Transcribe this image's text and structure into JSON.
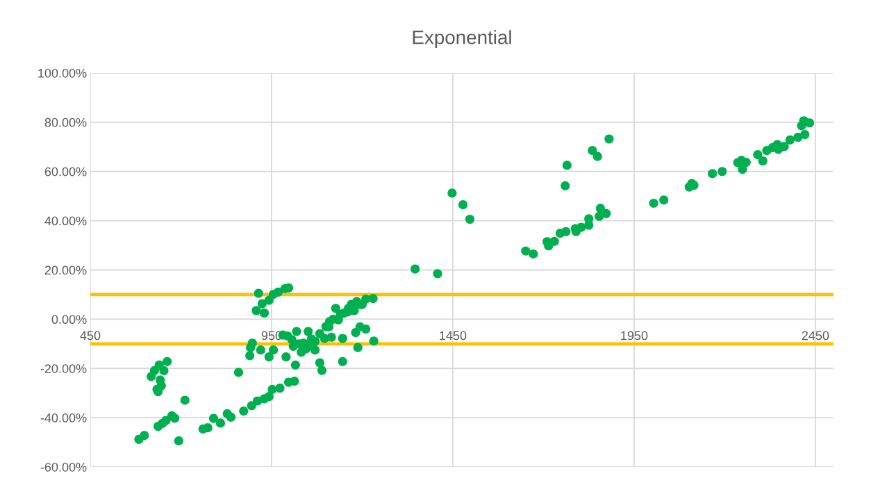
{
  "chart_data": {
    "type": "scatter",
    "title": "Exponential",
    "x": [
      584,
      599,
      637,
      649,
      659,
      675,
      683,
      694,
      711,
      618,
      627,
      640,
      662,
      653,
      643,
      646,
      637,
      634,
      761,
      774,
      790,
      809,
      828,
      838,
      873,
      895,
      911,
      930,
      943,
      952,
      973,
      997,
      1013,
      859,
      914,
      908,
      930,
      924,
      943,
      955,
      968,
      987,
      997,
      897,
      892,
      890,
      920,
      943,
      955,
      981,
      994,
      990,
      1006,
      1019,
      1016,
      1032,
      1038,
      1051,
      1057,
      1070,
      1083,
      1096,
      1108,
      1115,
      1127,
      1134,
      1146,
      1162,
      1178,
      1185,
      1210,
      1230,
      1083,
      1089,
      1146,
      1188,
      1182,
      1194,
      1210,
      1232,
      1010,
      1025,
      1045,
      1060,
      1070,
      1100,
      1110,
      1120,
      1140,
      1150,
      1160,
      1170,
      1195,
      1200,
      1346,
      1408,
      1448,
      1478,
      1497,
      1651,
      1672,
      1710,
      1714,
      1730,
      1746,
      1762,
      1788,
      1790,
      1804,
      1825,
      1825,
      1854,
      1857,
      1873,
      1760,
      1765,
      1835,
      1849,
      1881,
      2004,
      2032,
      2102,
      2109,
      2115,
      2166,
      2193,
      2236,
      2246,
      2259,
      2249,
      2291,
      2305,
      2316,
      2332,
      2345,
      2348,
      2364,
      2380,
      2402,
      2421,
      2412,
      2418,
      2434
    ],
    "series": [
      {
        "color": "#00b050",
        "values": [
          -48.8,
          -47.2,
          -43.5,
          -42.3,
          -41.1,
          -39.2,
          -40.2,
          -49.4,
          -32.9,
          -23.3,
          -20.9,
          -18.6,
          -17.2,
          -20.9,
          -24.7,
          -27.0,
          -29.4,
          -28.5,
          -44.6,
          -44.1,
          -40.3,
          -42.2,
          -38.4,
          -39.8,
          -37.3,
          -35.1,
          -33.2,
          -32.3,
          -31.4,
          -28.5,
          -28.0,
          -25.6,
          -25.2,
          -21.6,
          10.5,
          3.5,
          2.5,
          6.3,
          7.7,
          10.1,
          11.0,
          12.4,
          12.7,
          -9.7,
          -11.5,
          -14.8,
          -12.5,
          -15.3,
          -12.5,
          -6.4,
          -6.8,
          -15.3,
          -8.3,
          -5.0,
          -18.6,
          -13.4,
          -9.7,
          -5.0,
          -10.6,
          -12.5,
          -5.9,
          -7.8,
          -3.1,
          -7.3,
          4.4,
          -0.3,
          -7.8,
          4.4,
          3.5,
          7.2,
          8.2,
          8.4,
          -17.7,
          -20.8,
          -17.2,
          -11.5,
          -5.4,
          -3.1,
          -4.0,
          -8.9,
          -11,
          -10,
          -12,
          -8,
          -9,
          -3,
          -1,
          0,
          2,
          2.5,
          3,
          6,
          6,
          6,
          20.4,
          18.5,
          51.2,
          46.5,
          40.6,
          27.7,
          26.5,
          31.5,
          29.8,
          31.6,
          34.9,
          35.6,
          36.8,
          35.6,
          37.3,
          40.8,
          38.2,
          41.8,
          45.0,
          42.9,
          54.2,
          62.5,
          68.5,
          66.1,
          73.2,
          47.1,
          48.4,
          53.7,
          55.1,
          54.4,
          59.1,
          60.0,
          63.6,
          64.5,
          63.7,
          60.9,
          66.8,
          64.3,
          68.5,
          69.7,
          70.9,
          69.0,
          70.1,
          72.8,
          73.9,
          75.0,
          78.6,
          80.6,
          79.7
        ]
      }
    ],
    "xlim": [
      450,
      2500
    ],
    "xticks": [
      450,
      950,
      1450,
      1950,
      2450
    ],
    "ylim": [
      -60,
      100
    ],
    "yticks": [
      {
        "value": -60,
        "label": "-60.00%"
      },
      {
        "value": -40,
        "label": "-40.00%"
      },
      {
        "value": -20,
        "label": "-20.00%"
      },
      {
        "value": 0,
        "label": "0.00%"
      },
      {
        "value": 20,
        "label": "20.00%"
      },
      {
        "value": 40,
        "label": "40.00%"
      },
      {
        "value": 60,
        "label": "60.00%"
      },
      {
        "value": 80,
        "label": "80.00%"
      },
      {
        "value": 100,
        "label": "100.00%"
      }
    ],
    "ref_lines": [
      {
        "axis": "y",
        "value": 10,
        "color": "#ffc000"
      },
      {
        "axis": "y",
        "value": -10,
        "color": "#ffc000"
      }
    ],
    "grid": true,
    "marker": "circle"
  }
}
